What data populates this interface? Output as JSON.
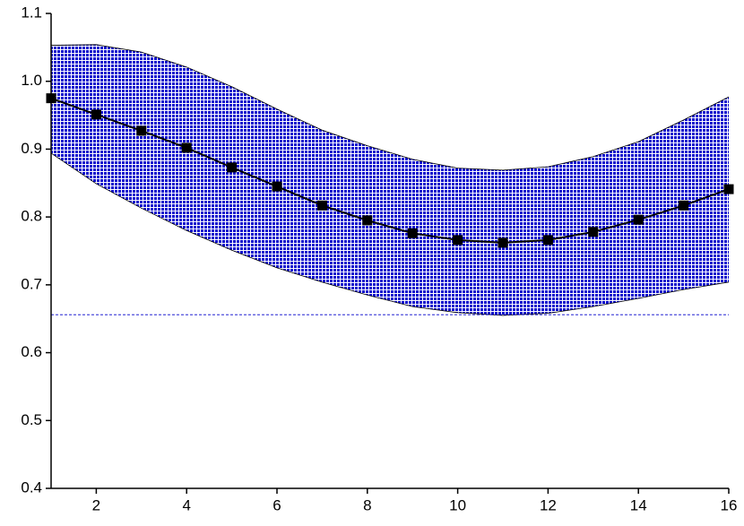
{
  "chart_data": {
    "type": "line_band",
    "x": [
      1,
      2,
      3,
      4,
      5,
      6,
      7,
      8,
      9,
      10,
      11,
      12,
      13,
      14,
      15,
      16
    ],
    "series": [
      {
        "color": "#000000",
        "values": [
          0.975,
          0.951,
          0.927,
          0.902,
          0.873,
          0.845,
          0.817,
          0.795,
          0.776,
          0.766,
          0.762,
          0.766,
          0.778,
          0.796,
          0.817,
          0.841
        ]
      }
    ],
    "band": {
      "color": "#0000cc",
      "upper": [
        1.053,
        1.054,
        1.043,
        1.021,
        0.992,
        0.959,
        0.928,
        0.905,
        0.885,
        0.872,
        0.869,
        0.874,
        0.889,
        0.911,
        0.943,
        0.977
      ],
      "lower": [
        0.894,
        0.849,
        0.813,
        0.78,
        0.751,
        0.725,
        0.704,
        0.685,
        0.668,
        0.659,
        0.655,
        0.658,
        0.668,
        0.68,
        0.693,
        0.704
      ]
    },
    "baseline": 0.656,
    "xlim": [
      1,
      16
    ],
    "xticks": [
      2,
      4,
      6,
      8,
      10,
      12,
      14,
      16
    ],
    "ylim": [
      0.4,
      1.1
    ],
    "yticks": [
      0.4,
      0.5,
      0.6,
      0.7,
      0.8,
      0.9,
      {
        "value": 1,
        "label": "1.0"
      },
      1.1
    ]
  }
}
